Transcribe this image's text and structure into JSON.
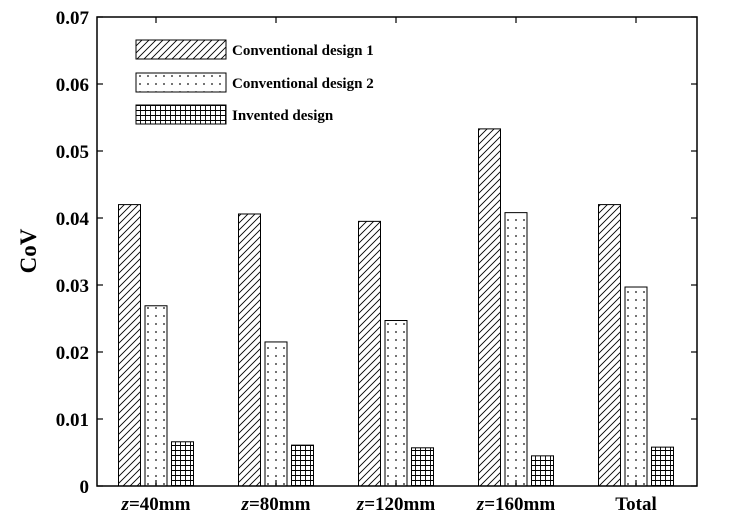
{
  "chart_data": {
    "type": "bar",
    "categories": [
      {
        "prefix": "z",
        "rest": "=40mm"
      },
      {
        "prefix": "z",
        "rest": "=80mm"
      },
      {
        "prefix": "z",
        "rest": "=120mm"
      },
      {
        "prefix": "z",
        "rest": "=160mm"
      },
      {
        "prefix": "",
        "rest": "Total"
      }
    ],
    "series": [
      {
        "name": "Conventional design 1",
        "pattern": "diagonal-hatch",
        "values": [
          0.042,
          0.0406,
          0.0395,
          0.0533,
          0.042
        ]
      },
      {
        "name": "Conventional design 2",
        "pattern": "dots",
        "values": [
          0.0269,
          0.0215,
          0.0247,
          0.0408,
          0.0297
        ]
      },
      {
        "name": "Invented design",
        "pattern": "grid",
        "values": [
          0.0066,
          0.0061,
          0.0057,
          0.0045,
          0.0058
        ]
      }
    ],
    "title": "",
    "xlabel": "",
    "ylabel": "CoV",
    "ylim": [
      0,
      0.07
    ],
    "yticks": [
      "0",
      "0.01",
      "0.02",
      "0.03",
      "0.04",
      "0.05",
      "0.06",
      "0.07"
    ],
    "grid": false,
    "legend_position": "top-left",
    "colors": {
      "stroke": "#000000",
      "fill": "#ffffff"
    }
  }
}
